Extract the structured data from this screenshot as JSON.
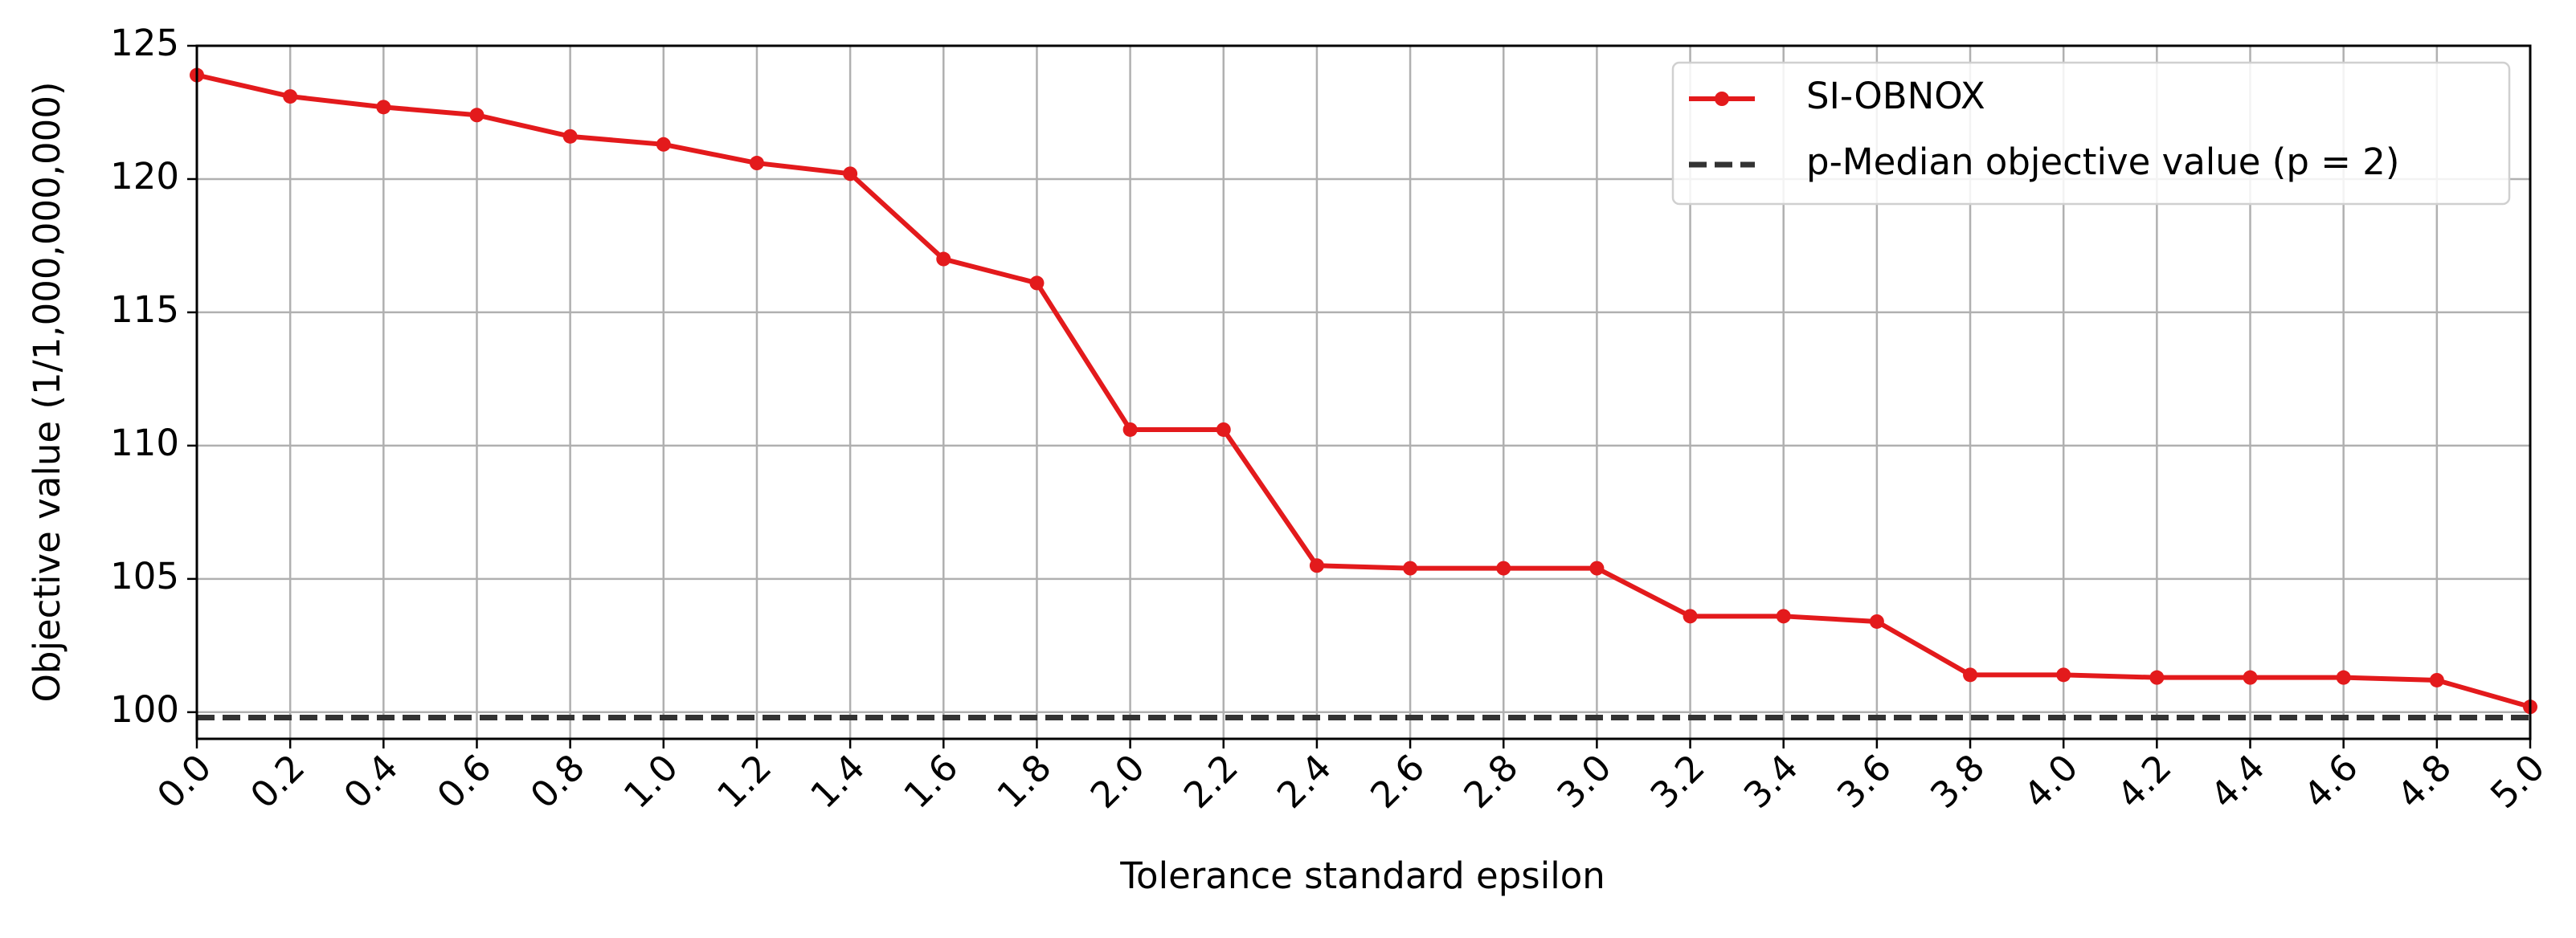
{
  "chart_data": {
    "type": "line",
    "x_label": "Tolerance standard epsilon",
    "y_label": "Objective value (1/1,000,000,000)",
    "x": [
      0,
      0.2,
      0.4,
      0.6,
      0.8,
      1,
      1.2,
      1.4,
      1.6,
      1.8,
      2,
      2.2,
      2.4,
      2.6,
      2.8,
      3,
      3.2,
      3.4,
      3.6,
      3.8,
      4,
      4.2,
      4.4,
      4.6,
      4.8,
      5
    ],
    "series": [
      {
        "name": "SI-OBNOX",
        "color": "#e31a1c",
        "values": [
          123.9,
          123.1,
          122.7,
          122.4,
          121.6,
          121.3,
          120.6,
          120.2,
          117.0,
          116.1,
          110.6,
          110.6,
          105.5,
          105.4,
          105.4,
          105.4,
          103.6,
          103.6,
          103.4,
          101.4,
          101.4,
          101.3,
          101.3,
          101.3,
          101.2,
          100.2
        ]
      }
    ],
    "reference_line": {
      "name": "p-Median objective value (p = 2)",
      "value": 99.8,
      "color": "#333333",
      "style": "dashed"
    },
    "xlim": [
      0,
      5
    ],
    "xticks": [
      {
        "value": 0,
        "label": "0.0"
      },
      0.2,
      0.4,
      0.6,
      0.8,
      {
        "value": 1,
        "label": "1.0"
      },
      1.2,
      1.4,
      1.6,
      1.8,
      {
        "value": 2,
        "label": "2.0"
      },
      2.2,
      2.4,
      2.6,
      2.8,
      {
        "value": 3,
        "label": "3.0"
      },
      3.2,
      3.4,
      3.6,
      3.8,
      {
        "value": 4,
        "label": "4.0"
      },
      4.2,
      4.4,
      4.6,
      4.8,
      {
        "value": 5,
        "label": "5.0"
      }
    ],
    "ylim": [
      99,
      125
    ],
    "yticks": [
      100,
      105,
      110,
      115,
      120,
      125
    ],
    "grid": true,
    "legend": "upper right"
  }
}
